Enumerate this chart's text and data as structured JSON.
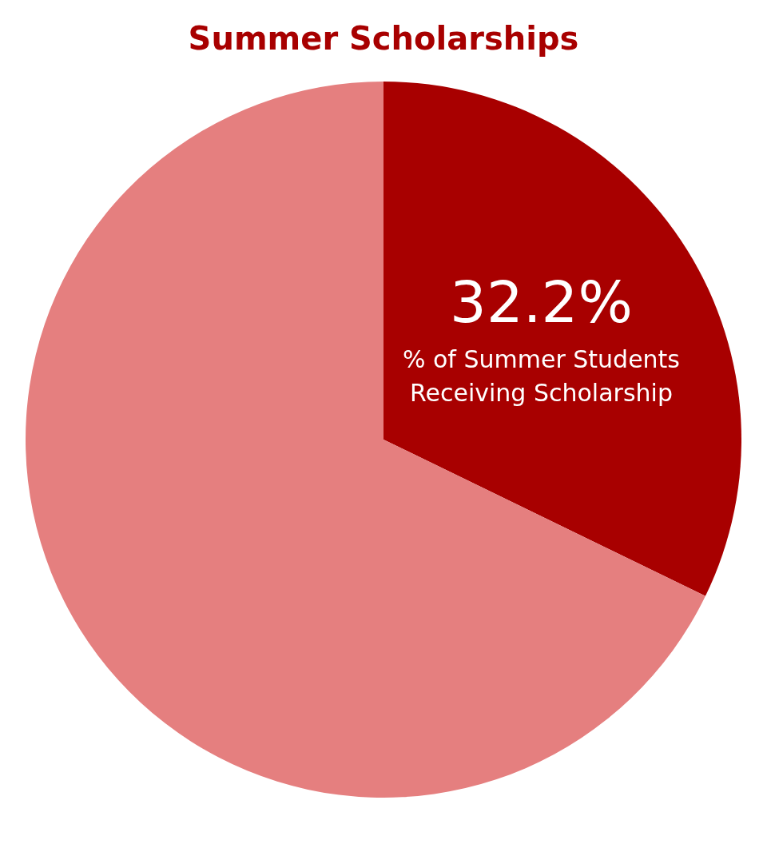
{
  "chart_data": {
    "type": "pie",
    "title": "Summer Scholarships",
    "categories": [
      "% of Summer Students Receiving Scholarship",
      null
    ],
    "values": [
      32.2,
      67.8
    ],
    "colors": [
      "#a80000",
      "#e57f7f"
    ],
    "value_labels": [
      "32.2%",
      null
    ],
    "legend": false
  }
}
